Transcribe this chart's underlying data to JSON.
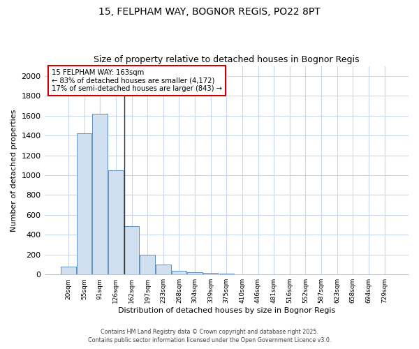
{
  "title1": "15, FELPHAM WAY, BOGNOR REGIS, PO22 8PT",
  "title2": "Size of property relative to detached houses in Bognor Regis",
  "xlabel": "Distribution of detached houses by size in Bognor Regis",
  "ylabel": "Number of detached properties",
  "categories": [
    "20sqm",
    "55sqm",
    "91sqm",
    "126sqm",
    "162sqm",
    "197sqm",
    "233sqm",
    "268sqm",
    "304sqm",
    "339sqm",
    "375sqm",
    "410sqm",
    "446sqm",
    "481sqm",
    "516sqm",
    "552sqm",
    "587sqm",
    "623sqm",
    "658sqm",
    "694sqm",
    "729sqm"
  ],
  "values": [
    80,
    1420,
    1620,
    1050,
    490,
    200,
    100,
    35,
    25,
    15,
    5,
    0,
    0,
    0,
    0,
    0,
    0,
    0,
    0,
    0,
    0
  ],
  "bar_color": "#d0e0f0",
  "bar_edge_color": "#6090c0",
  "vline_index": 4,
  "vline_color": "#333333",
  "annotation_line1": "15 FELPHAM WAY: 163sqm",
  "annotation_line2": "← 83% of detached houses are smaller (4,172)",
  "annotation_line3": "17% of semi-detached houses are larger (843) →",
  "annotation_box_color": "#ffffff",
  "annotation_box_edge_color": "#cc0000",
  "ylim": [
    0,
    2100
  ],
  "yticks": [
    0,
    200,
    400,
    600,
    800,
    1000,
    1200,
    1400,
    1600,
    1800,
    2000
  ],
  "bg_color": "#ffffff",
  "plot_bg_color": "#ffffff",
  "grid_color": "#c8d8f0",
  "footer1": "Contains HM Land Registry data © Crown copyright and database right 2025.",
  "footer2": "Contains public sector information licensed under the Open Government Licence v3.0."
}
